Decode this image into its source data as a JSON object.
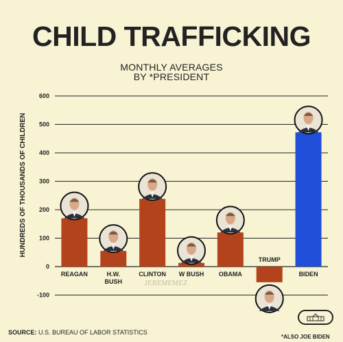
{
  "title": "CHILD TRAFFICKING",
  "subtitle_line1": "MONTHLY AVERAGES",
  "subtitle_line2": "BY *PRESIDENT",
  "source_label": "SOURCE:",
  "source_text": "U.S. BUREAU OF LABOR STATISTICS",
  "footnote": "*ALSO JOE BIDEN",
  "watermark": "JEREMEMEZ",
  "colors": {
    "background": "#f7f3d3",
    "bar_default": "#b3431c",
    "bar_highlight": "#1f4fd8",
    "grid": "#222222"
  },
  "chart_data": {
    "type": "bar",
    "ylabel": "HUNDREDS OF THOUSANDS OF CHILDREN",
    "ylim": [
      -100,
      600
    ],
    "yticks": [
      600,
      500,
      400,
      300,
      200,
      100,
      0,
      -100
    ],
    "grid": true,
    "categories": [
      "REAGAN",
      "H.W. BUSH",
      "CLINTON",
      "W BUSH",
      "OBAMA",
      "TRUMP",
      "BIDEN"
    ],
    "values": [
      170,
      55,
      238,
      13,
      120,
      -55,
      472
    ],
    "highlight": "BIDEN"
  }
}
